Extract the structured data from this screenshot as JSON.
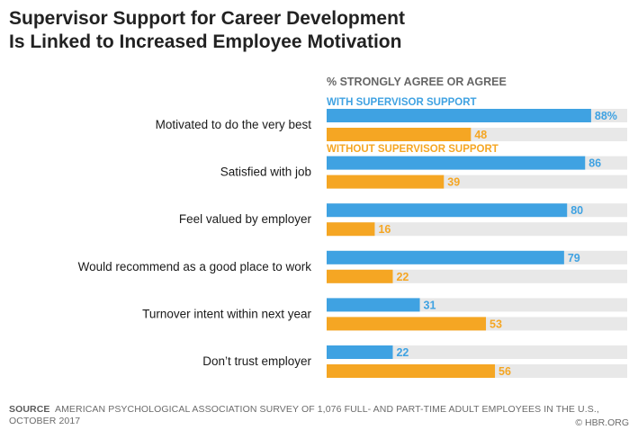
{
  "title": {
    "line1": "Supervisor Support for Career Development",
    "line2": "Is Linked to Increased Employee Motivation"
  },
  "colors": {
    "with": "#3fa2e2",
    "without": "#f5a623",
    "track": "#e8e8e8",
    "header": "#666666",
    "label": "#1a1a1a"
  },
  "chart_data": {
    "type": "bar",
    "orientation": "horizontal",
    "header": "% STRONGLY AGREE OR AGREE",
    "categories": [
      "Motivated to do the very best",
      "Satisfied with job",
      "Feel valued by employer",
      "Would recommend as a good place to work",
      "Turnover intent within next year",
      "Don’t trust employer"
    ],
    "series": [
      {
        "name": "WITH SUPERVISOR SUPPORT",
        "values": [
          88,
          86,
          80,
          79,
          31,
          22
        ]
      },
      {
        "name": "WITHOUT SUPERVISOR  SUPPORT",
        "values": [
          48,
          39,
          16,
          22,
          53,
          56
        ]
      }
    ],
    "value_labels": [
      [
        "88%",
        "86",
        "80",
        "79",
        "31",
        "22"
      ],
      [
        "48",
        "39",
        "16",
        "22",
        "53",
        "56"
      ]
    ],
    "xlim": [
      0,
      100
    ],
    "grid": false,
    "legend": "inline above first group"
  },
  "footer": {
    "source_label": "SOURCE",
    "source_line1": "AMERICAN PSYCHOLOGICAL ASSOCIATION SURVEY OF 1,076",
    "source_line2": "FULL- AND PART-TIME ADULT EMPLOYEES IN THE U.S., OCTOBER 2017",
    "credit": "© HBR.ORG"
  }
}
